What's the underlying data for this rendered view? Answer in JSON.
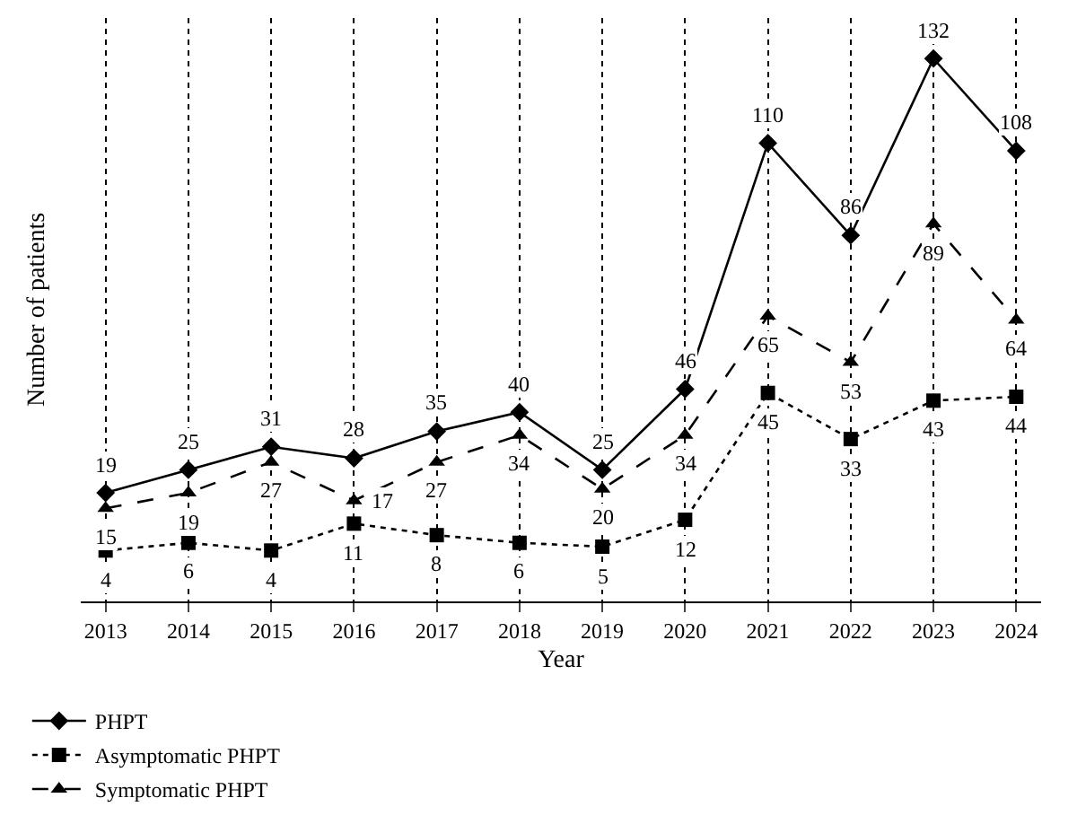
{
  "chart_data": {
    "type": "line",
    "xlabel": "Year",
    "ylabel": "Number of patients",
    "categories": [
      "2013",
      "2014",
      "2015",
      "2016",
      "2017",
      "2018",
      "2019",
      "2020",
      "2021",
      "2022",
      "2023",
      "2024"
    ],
    "series": [
      {
        "name": "PHPT",
        "color": "#000000",
        "marker": "diamond",
        "line_style": "solid",
        "values": [
          19,
          25,
          31,
          28,
          35,
          40,
          25,
          46,
          110,
          86,
          132,
          108
        ]
      },
      {
        "name": "Asymptomatic PHPT",
        "color": "#000000",
        "marker": "square",
        "line_style": "dotted",
        "values": [
          4,
          6,
          4,
          11,
          8,
          6,
          5,
          12,
          45,
          33,
          43,
          44
        ]
      },
      {
        "name": "Symptomatic PHPT",
        "color": "#000000",
        "marker": "triangle",
        "line_style": "dashed",
        "values": [
          15,
          19,
          27,
          17,
          27,
          34,
          20,
          34,
          65,
          53,
          89,
          64
        ]
      }
    ],
    "data_labels": true,
    "grid": "x",
    "legend": "bottom left",
    "tick_labels": "x"
  }
}
